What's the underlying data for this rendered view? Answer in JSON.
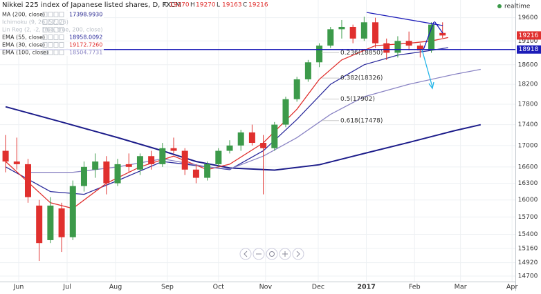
{
  "chart_data": {
    "type": "candlestick",
    "title": "Nikkei 225 index of Japanese listed shares, D, FXCM",
    "last_bar": {
      "labels": [
        "O",
        "H",
        "L",
        "C"
      ],
      "values": [
        19270,
        19270,
        19163,
        19216
      ]
    },
    "realtime": "realtime",
    "log_scale": true,
    "grid": true,
    "xlim": [
      -0.5,
      45.5
    ],
    "xticks": [
      {
        "value": 1.17,
        "label": "Jun"
      },
      {
        "value": 5.49,
        "label": "Jul"
      },
      {
        "value": 9.81,
        "label": "Aug"
      },
      {
        "value": 14.44,
        "label": "Sep"
      },
      {
        "value": 19.0,
        "label": "Oct"
      },
      {
        "value": 23.2,
        "label": "Nov"
      },
      {
        "value": 27.9,
        "label": "Dec"
      },
      {
        "value": 32.2,
        "label": "2017"
      },
      {
        "value": 36.5,
        "label": "Feb"
      },
      {
        "value": 40.6,
        "label": "Mar"
      },
      {
        "value": 45.2,
        "label": "Apr"
      }
    ],
    "ylim": [
      14610,
      19990
    ],
    "yticks": [
      19600,
      19100,
      18600,
      18200,
      17800,
      17400,
      17000,
      16600,
      16300,
      16000,
      15700,
      15400,
      15160,
      14920,
      14700
    ],
    "up_color": "#3c9a4a",
    "down_color": "#e0302e",
    "ohlc": {
      "open": [
        16900,
        16700,
        16650,
        15900,
        15300,
        15850,
        15350,
        16250,
        16550,
        16700,
        16300,
        16650,
        16550,
        16800,
        16650,
        16950,
        16900,
        16550,
        16400,
        16650,
        16900,
        17000,
        17250,
        17050,
        16950,
        17400,
        17900,
        18300,
        18650,
        19000,
        19350,
        19400,
        19150,
        19500,
        19050,
        18850,
        19100,
        19000,
        18900,
        19270
      ],
      "high": [
        17200,
        17150,
        16750,
        16000,
        16050,
        15950,
        16350,
        16700,
        16850,
        16800,
        16750,
        16850,
        16850,
        16900,
        17050,
        17150,
        16950,
        16650,
        16700,
        16950,
        17100,
        17300,
        17400,
        17200,
        17450,
        17950,
        18350,
        18700,
        19050,
        19400,
        19550,
        19450,
        19620,
        19600,
        19150,
        19200,
        19300,
        19050,
        19500,
        19500
      ],
      "low": [
        16500,
        16550,
        15950,
        14950,
        15250,
        15100,
        15300,
        16150,
        16400,
        16100,
        16250,
        16500,
        16450,
        16550,
        16600,
        16850,
        16450,
        16300,
        16350,
        16600,
        16850,
        16900,
        17000,
        16100,
        16900,
        17350,
        17850,
        18250,
        18550,
        18950,
        19150,
        19050,
        19100,
        18950,
        18700,
        18750,
        18900,
        18750,
        18850,
        19163
      ],
      "close": [
        16700,
        16650,
        16050,
        15250,
        15900,
        15350,
        16250,
        16600,
        16700,
        16300,
        16650,
        16600,
        16800,
        16650,
        16950,
        16900,
        16550,
        16400,
        16650,
        16900,
        17000,
        17250,
        17050,
        16950,
        17400,
        17900,
        18300,
        18650,
        19000,
        19350,
        19400,
        19150,
        19500,
        19050,
        18850,
        19100,
        19000,
        18900,
        19450,
        19216
      ]
    },
    "series": [
      {
        "name": "MA (200, close)",
        "last_value": {
          "value": 17398.993,
          "label": "17398.9930"
        },
        "color": "#1c1c8a",
        "width": 2,
        "x": [
          0,
          5,
          10,
          14,
          17,
          20,
          24,
          28,
          32,
          36,
          40,
          42.4
        ],
        "values": [
          17750,
          17450,
          17150,
          16900,
          16700,
          16580,
          16540,
          16640,
          16850,
          17060,
          17280,
          17398
        ]
      },
      {
        "name": "Ichimoku (9, 26, 52, 26)",
        "hidden": true
      },
      {
        "name": "Lin Reg (2, -2, true, true, 200, close)",
        "hidden": true
      },
      {
        "name": "EMA (55, close)",
        "last_value": 18958.0092,
        "color": "#2b2b9c",
        "width": 1.3,
        "x": [
          0,
          4,
          7,
          10,
          14,
          18,
          20,
          23,
          26,
          29,
          32,
          35,
          38,
          39.5
        ],
        "values": [
          16600,
          16150,
          16100,
          16350,
          16700,
          16600,
          16550,
          16900,
          17500,
          18200,
          18600,
          18800,
          18900,
          18958
        ]
      },
      {
        "name": "EMA (30, close)",
        "last_value": {
          "value": 19172.726,
          "label": "19172.7260"
        },
        "color": "#e0302e",
        "width": 1.3,
        "x": [
          0,
          4,
          6,
          9,
          12,
          15,
          18,
          20,
          23,
          26,
          28,
          30,
          33,
          36,
          38,
          39.5
        ],
        "values": [
          16700,
          15950,
          15850,
          16300,
          16600,
          16800,
          16550,
          16650,
          17050,
          17700,
          18300,
          18700,
          19000,
          19050,
          19100,
          19172
        ]
      },
      {
        "name": "EMA (100, close)",
        "last_value": 18504.7731,
        "color": "#8a84c4",
        "width": 1.3,
        "x": [
          2,
          6,
          10,
          14,
          18,
          20,
          23,
          26,
          29,
          32,
          36,
          40,
          42.4
        ],
        "values": [
          16500,
          16500,
          16600,
          16750,
          16600,
          16560,
          16800,
          17150,
          17600,
          17950,
          18200,
          18400,
          18504
        ]
      }
    ],
    "hline": {
      "value": 18918,
      "color": "#1c1cb8"
    },
    "fib_levels": [
      {
        "value": 18850,
        "label": "0.236(18850)"
      },
      {
        "value": 18326,
        "label": "0.382(18326)"
      },
      {
        "value": 17902,
        "label": "0.5(17902)"
      },
      {
        "value": 17478,
        "label": "0.618(17478)"
      }
    ]
  }
}
